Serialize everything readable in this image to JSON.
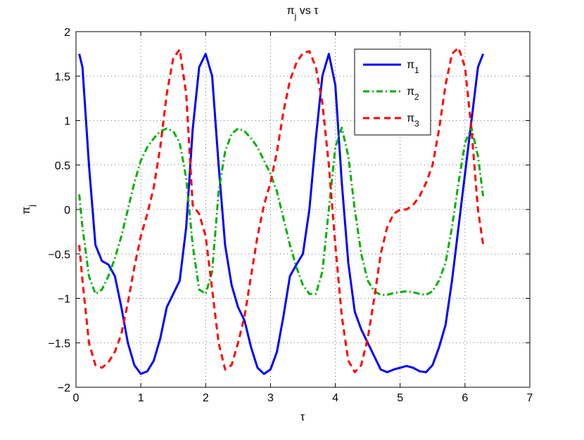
{
  "chart_data": {
    "type": "line",
    "title": "πj vs τ",
    "x_label": "τ",
    "y_label": "πj",
    "x": [
      0.05,
      0.1,
      0.2,
      0.3,
      0.4,
      0.5,
      0.6,
      0.7,
      0.8,
      0.9,
      1.0,
      1.1,
      1.2,
      1.3,
      1.4,
      1.5,
      1.6,
      1.7,
      1.8,
      1.9,
      2.0,
      2.1,
      2.2,
      2.3,
      2.4,
      2.5,
      2.6,
      2.7,
      2.8,
      2.9,
      3.0,
      3.1,
      3.2,
      3.3,
      3.4,
      3.5,
      3.6,
      3.7,
      3.8,
      3.9,
      4.0,
      4.1,
      4.2,
      4.3,
      4.4,
      4.5,
      4.6,
      4.7,
      4.8,
      4.9,
      5.0,
      5.1,
      5.2,
      5.3,
      5.4,
      5.5,
      5.6,
      5.7,
      5.8,
      5.9,
      6.0,
      6.1,
      6.2,
      6.28
    ],
    "series": [
      {
        "name": "π1",
        "color": "#0000ff",
        "dash": "solid",
        "values": [
          1.75,
          1.6,
          0.5,
          -0.4,
          -0.58,
          -0.62,
          -0.75,
          -1.1,
          -1.5,
          -1.75,
          -1.85,
          -1.82,
          -1.7,
          -1.45,
          -1.1,
          -0.95,
          -0.8,
          -0.2,
          0.9,
          1.6,
          1.75,
          1.5,
          0.5,
          -0.4,
          -0.85,
          -1.1,
          -1.25,
          -1.55,
          -1.78,
          -1.85,
          -1.8,
          -1.6,
          -1.2,
          -0.75,
          -0.62,
          -0.5,
          0.0,
          0.8,
          1.5,
          1.75,
          1.4,
          0.3,
          -0.6,
          -1.15,
          -1.35,
          -1.5,
          -1.65,
          -1.8,
          -1.83,
          -1.8,
          -1.78,
          -1.76,
          -1.78,
          -1.82,
          -1.83,
          -1.75,
          -1.55,
          -1.3,
          -0.8,
          -0.2,
          0.4,
          1.0,
          1.6,
          1.75
        ]
      },
      {
        "name": "π2",
        "color": "#00b000",
        "dash": "dashdot",
        "values": [
          0.17,
          -0.2,
          -0.75,
          -0.95,
          -0.9,
          -0.75,
          -0.55,
          -0.3,
          0.0,
          0.3,
          0.55,
          0.7,
          0.8,
          0.88,
          0.91,
          0.88,
          0.75,
          0.35,
          -0.4,
          -0.9,
          -0.95,
          -0.7,
          0.2,
          0.65,
          0.85,
          0.91,
          0.88,
          0.8,
          0.7,
          0.55,
          0.4,
          0.2,
          -0.1,
          -0.4,
          -0.65,
          -0.85,
          -0.95,
          -0.95,
          -0.7,
          0.0,
          0.7,
          0.92,
          0.6,
          0.0,
          -0.5,
          -0.8,
          -0.92,
          -0.96,
          -0.96,
          -0.94,
          -0.93,
          -0.92,
          -0.93,
          -0.95,
          -0.96,
          -0.92,
          -0.8,
          -0.6,
          -0.2,
          0.3,
          0.75,
          0.92,
          0.6,
          0.15
        ]
      },
      {
        "name": "π3",
        "color": "#ff0000",
        "dash": "dashed",
        "values": [
          -0.4,
          -0.8,
          -1.5,
          -1.75,
          -1.78,
          -1.72,
          -1.6,
          -1.4,
          -1.05,
          -0.65,
          -0.3,
          -0.05,
          0.25,
          0.7,
          1.3,
          1.7,
          1.8,
          1.3,
          0.05,
          -0.05,
          -0.3,
          -0.9,
          -1.5,
          -1.8,
          -1.75,
          -1.5,
          -1.2,
          -0.75,
          -0.3,
          0.05,
          0.3,
          0.65,
          1.1,
          1.45,
          1.65,
          1.76,
          1.78,
          1.6,
          1.2,
          0.5,
          -0.4,
          -1.2,
          -1.7,
          -1.83,
          -1.75,
          -1.45,
          -1.0,
          -0.5,
          -0.2,
          -0.05,
          0.0,
          0.0,
          0.05,
          0.15,
          0.3,
          0.5,
          0.9,
          1.4,
          1.75,
          1.82,
          1.6,
          0.9,
          0.0,
          -0.4
        ]
      }
    ],
    "xlim": [
      0,
      7
    ],
    "ylim": [
      -2,
      2
    ],
    "xticks": [
      0,
      1,
      2,
      3,
      4,
      5,
      6,
      7
    ],
    "yticks": [
      {
        "value": -2,
        "label": "−2"
      },
      {
        "value": -1.5,
        "label": "−1.5"
      },
      {
        "value": -1,
        "label": "−1"
      },
      {
        "value": -0.5,
        "label": "−0.5"
      },
      0,
      0.5,
      1,
      1.5,
      2
    ],
    "grid": true,
    "legend": "upper right"
  }
}
